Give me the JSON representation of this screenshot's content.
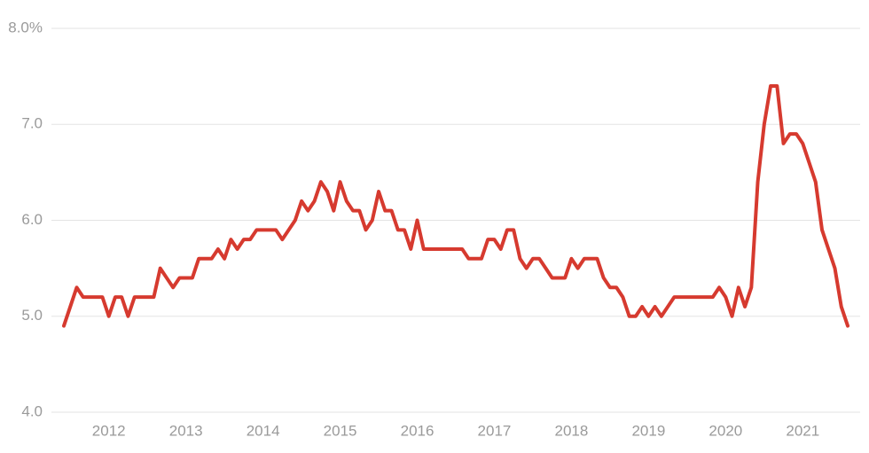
{
  "chart_data": {
    "type": "line",
    "categories": [
      null,
      null,
      null,
      null,
      null,
      null,
      null,
      "2012",
      null,
      null,
      null,
      null,
      null,
      null,
      null,
      null,
      null,
      null,
      null,
      "2013",
      null,
      null,
      null,
      null,
      null,
      null,
      null,
      null,
      null,
      null,
      null,
      "2014",
      null,
      null,
      null,
      null,
      null,
      null,
      null,
      null,
      null,
      null,
      null,
      "2015",
      null,
      null,
      null,
      null,
      null,
      null,
      null,
      null,
      null,
      null,
      null,
      "2016",
      null,
      null,
      null,
      null,
      null,
      null,
      null,
      null,
      null,
      null,
      null,
      "2017",
      null,
      null,
      null,
      null,
      null,
      null,
      null,
      null,
      null,
      null,
      null,
      "2018",
      null,
      null,
      null,
      null,
      null,
      null,
      null,
      null,
      null,
      null,
      null,
      "2019",
      null,
      null,
      null,
      null,
      null,
      null,
      null,
      null,
      null,
      null,
      null,
      "2020",
      null,
      null,
      null,
      null,
      null,
      null,
      null,
      null,
      null,
      null,
      null,
      "2021",
      null,
      null,
      null,
      null,
      null,
      null,
      null
    ],
    "series": [
      {
        "color": "#d63a2f",
        "values": [
          4.9,
          5.1,
          5.3,
          5.2,
          5.2,
          5.2,
          5.2,
          5.0,
          5.2,
          5.2,
          5.0,
          5.2,
          5.2,
          5.2,
          5.2,
          5.5,
          5.4,
          5.3,
          5.4,
          5.4,
          5.4,
          5.6,
          5.6,
          5.6,
          5.7,
          5.6,
          5.8,
          5.7,
          5.8,
          5.8,
          5.9,
          5.9,
          5.9,
          5.9,
          5.8,
          5.9,
          6.0,
          6.2,
          6.1,
          6.2,
          6.4,
          6.3,
          6.1,
          6.4,
          6.2,
          6.1,
          6.1,
          5.9,
          6.0,
          6.3,
          6.1,
          6.1,
          5.9,
          5.9,
          5.7,
          6.0,
          5.7,
          5.7,
          5.7,
          5.7,
          5.7,
          5.7,
          5.7,
          5.6,
          5.6,
          5.6,
          5.8,
          5.8,
          5.7,
          5.9,
          5.9,
          5.6,
          5.5,
          5.6,
          5.6,
          5.5,
          5.4,
          5.4,
          5.4,
          5.6,
          5.5,
          5.6,
          5.6,
          5.6,
          5.4,
          5.3,
          5.3,
          5.2,
          5.0,
          5.0,
          5.1,
          5.0,
          5.1,
          5.0,
          5.1,
          5.2,
          5.2,
          5.2,
          5.2,
          5.2,
          5.2,
          5.2,
          5.3,
          5.2,
          5.0,
          5.3,
          5.1,
          5.3,
          6.4,
          7.0,
          7.4,
          7.4,
          6.8,
          6.9,
          6.9,
          6.8,
          6.6,
          6.4,
          5.9,
          5.7,
          5.5,
          5.1,
          4.9
        ]
      }
    ],
    "ylim": [
      4,
      8
    ],
    "yticks": [
      {
        "value": 4,
        "label": "4.0"
      },
      {
        "value": 5,
        "label": "5.0"
      },
      {
        "value": 6,
        "label": "6.0"
      },
      {
        "value": 7,
        "label": "7.0"
      },
      {
        "value": 8,
        "label": "8.0%"
      }
    ],
    "grid": true
  }
}
